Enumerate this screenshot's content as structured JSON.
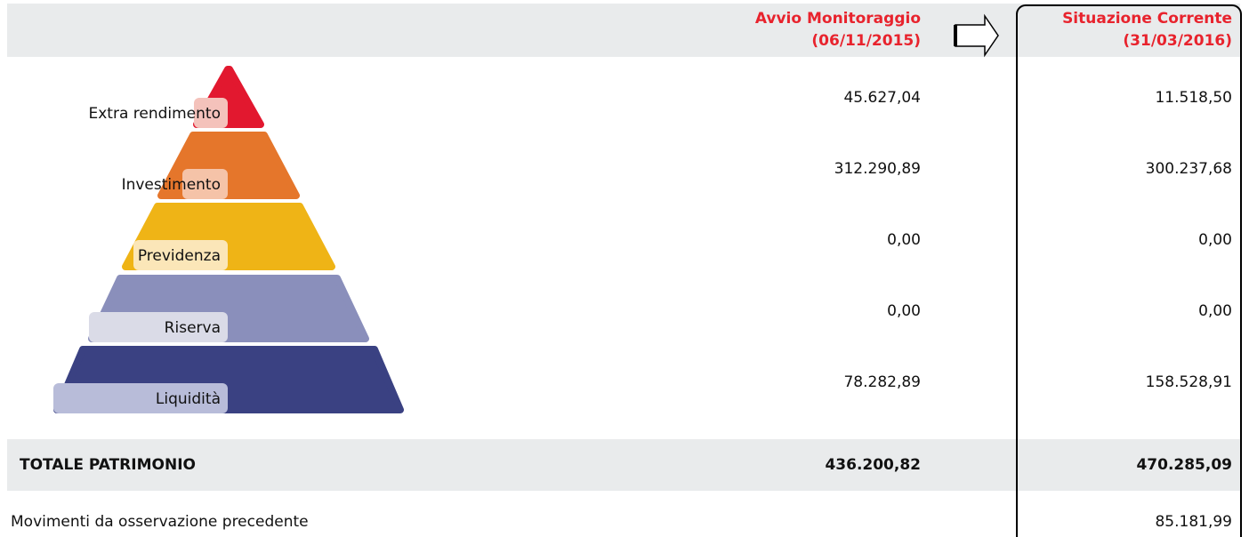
{
  "header": {
    "start": {
      "title": "Avvio Monitoraggio",
      "date": "(06/11/2015)"
    },
    "current": {
      "title": "Situazione Corrente",
      "date": "(31/03/2016)"
    }
  },
  "levels": [
    {
      "label": "Extra rendimento",
      "start": "45.627,04",
      "current": "11.518,50"
    },
    {
      "label": "Investimento",
      "start": "312.290,89",
      "current": "300.237,68"
    },
    {
      "label": "Previdenza",
      "start": "0,00",
      "current": "0,00"
    },
    {
      "label": "Riserva",
      "start": "0,00",
      "current": "0,00"
    },
    {
      "label": "Liquidità",
      "start": "78.282,89",
      "current": "158.528,91"
    }
  ],
  "total": {
    "label": "TOTALE PATRIMONIO",
    "start": "436.200,82",
    "current": "470.285,09"
  },
  "movements": {
    "label": "Movimenti da osservazione precedente",
    "current": "85.181,99"
  }
}
